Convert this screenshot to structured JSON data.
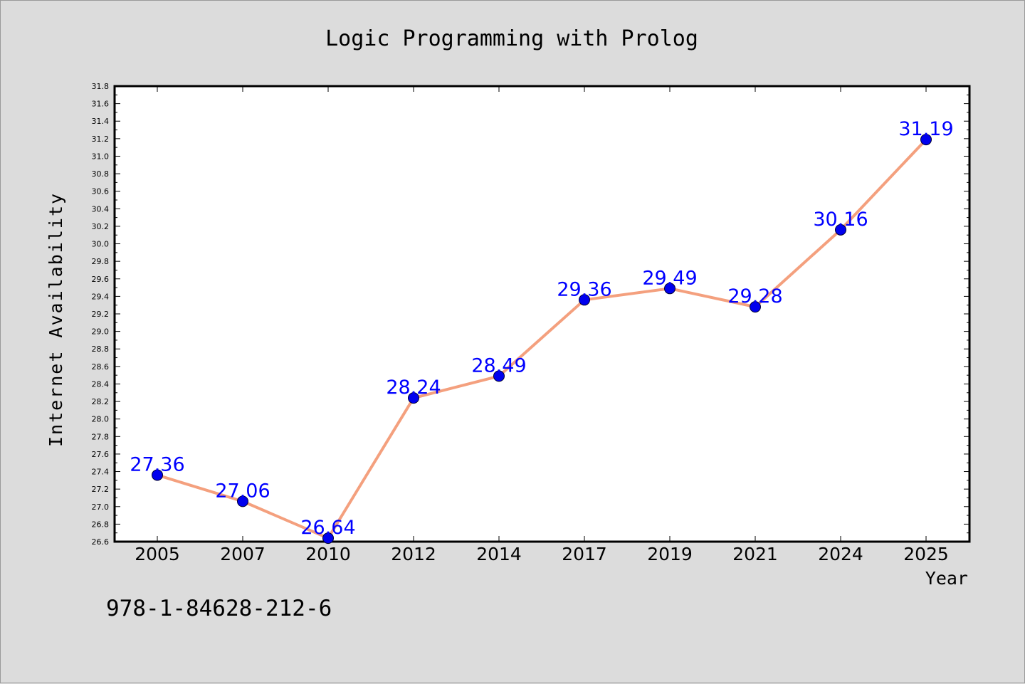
{
  "chart_data": {
    "type": "line",
    "title": "Logic Programming with Prolog",
    "xlabel": "Year",
    "ylabel": "Internet Availability",
    "categories": [
      "2005",
      "2007",
      "2010",
      "2012",
      "2014",
      "2017",
      "2019",
      "2021",
      "2024",
      "2025"
    ],
    "series": [
      {
        "values": [
          27.36,
          27.06,
          26.64,
          28.24,
          28.49,
          29.36,
          29.49,
          29.28,
          30.16,
          31.19
        ],
        "line_color": "#f4a07e",
        "marker_color": "#0000ee"
      }
    ],
    "data_labels": [
      "27.36",
      "27.06",
      "26.64",
      "28.24",
      "28.49",
      "29.36",
      "29.49",
      "29.28",
      "30.16",
      "31.19"
    ],
    "ylim": [
      26.6,
      31.8
    ],
    "yticks": [
      "26.6",
      "26.8",
      "27.0",
      "27.2",
      "27.4",
      "27.6",
      "27.8",
      "28.0",
      "28.2",
      "28.4",
      "28.6",
      "28.8",
      "29.0",
      "29.2",
      "29.4",
      "29.6",
      "29.8",
      "30.0",
      "30.2",
      "30.4",
      "30.6",
      "30.8",
      "31.0",
      "31.2",
      "31.4",
      "31.6",
      "31.8"
    ],
    "grid": false,
    "legend": "none",
    "label_color": "#0000ff"
  },
  "annotation": {
    "isbn": "978-1-84628-212-6"
  }
}
